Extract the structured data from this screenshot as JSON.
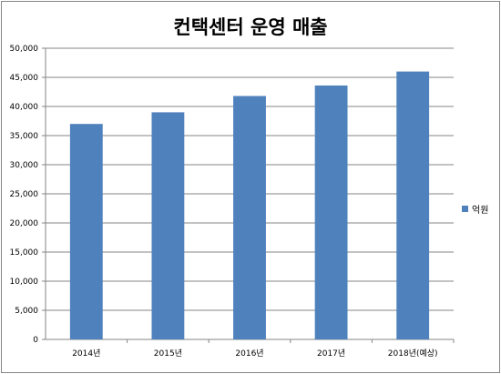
{
  "chart_data": {
    "type": "bar",
    "title": "컨택센터 운영 매출",
    "categories": [
      "2014년",
      "2015년",
      "2016년",
      "2017년",
      "2018년(예상)"
    ],
    "series": [
      {
        "name": "억원",
        "values": [
          37000,
          39000,
          41800,
          43600,
          46000
        ]
      }
    ],
    "ylim": [
      0,
      50000
    ],
    "yticks": [
      "0",
      "5,000",
      "10,000",
      "15,000",
      "20,000",
      "25,000",
      "30,000",
      "35,000",
      "40,000",
      "45,000",
      "50,000"
    ],
    "grid": true,
    "legend_position": "right",
    "bar_color": "#4F81BD",
    "grid_color": "#868686"
  }
}
